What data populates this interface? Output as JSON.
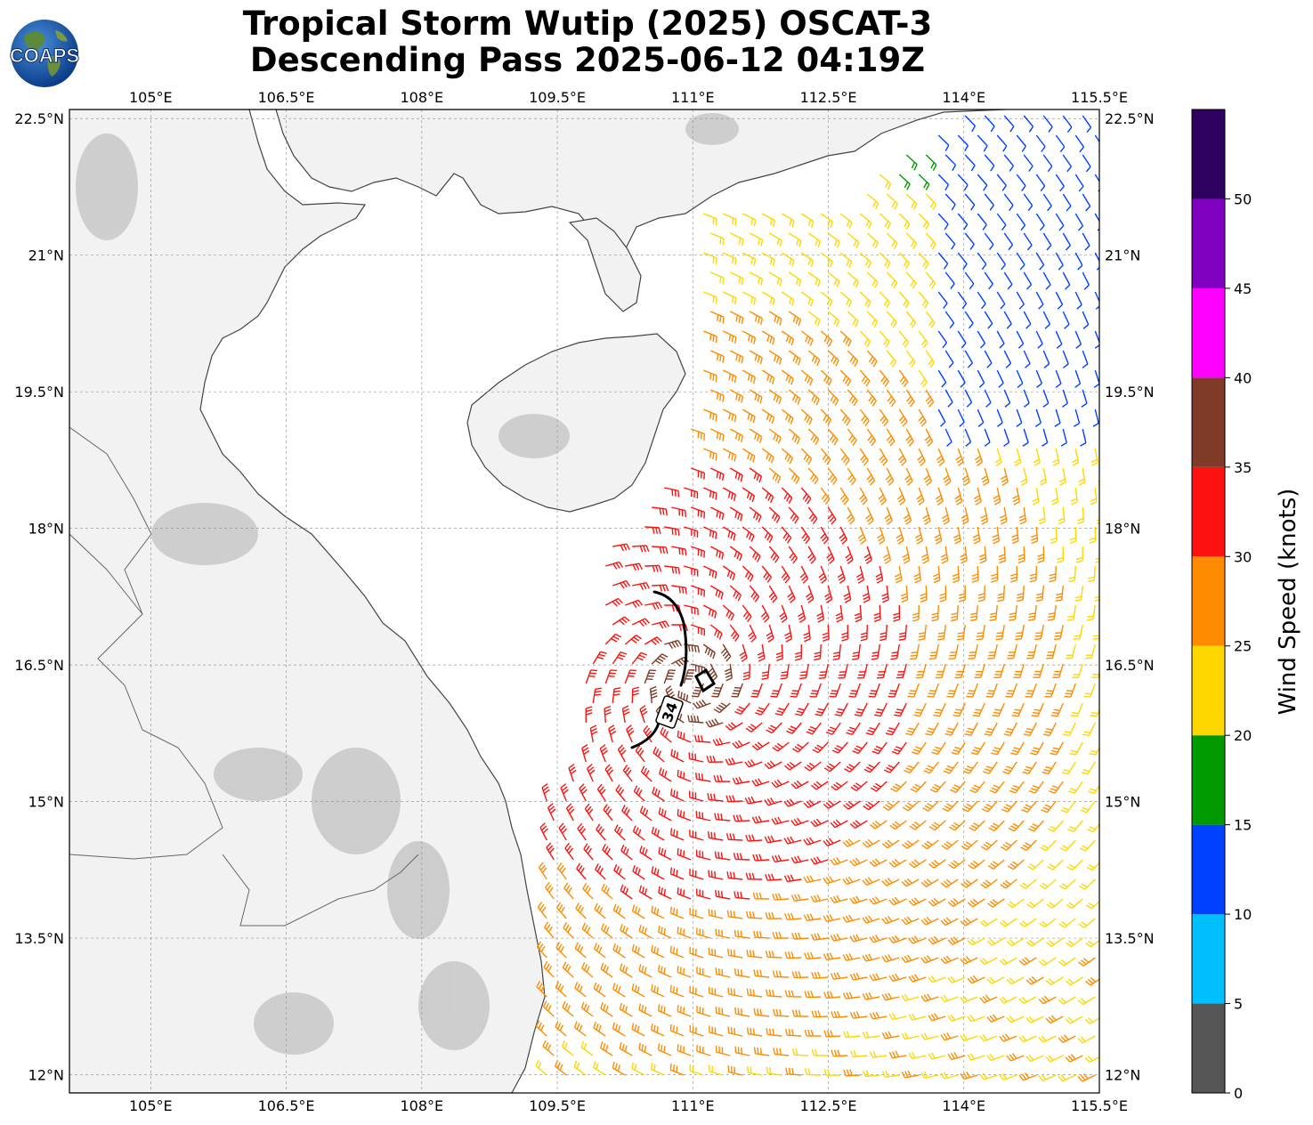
{
  "title": {
    "line1": "Tropical Storm Wutip (2025) OSCAT-3",
    "line2": "Descending Pass 2025-06-12 04:19Z"
  },
  "logo": {
    "text": "COAPS",
    "icon": "coaps-globe-logo"
  },
  "map": {
    "lon_range": [
      104.1,
      115.5
    ],
    "lat_range": [
      11.8,
      22.6
    ],
    "lon_ticks": [
      {
        "value": 105.0,
        "label": "105°E"
      },
      {
        "value": 106.5,
        "label": "106.5°E"
      },
      {
        "value": 108.0,
        "label": "108°E"
      },
      {
        "value": 109.5,
        "label": "109.5°E"
      },
      {
        "value": 111.0,
        "label": "111°E"
      },
      {
        "value": 112.5,
        "label": "112.5°E"
      },
      {
        "value": 114.0,
        "label": "114°E"
      },
      {
        "value": 115.5,
        "label": "115.5°E"
      }
    ],
    "lat_ticks": [
      {
        "value": 22.5,
        "label": "22.5°N"
      },
      {
        "value": 21.0,
        "label": "21°N"
      },
      {
        "value": 19.5,
        "label": "19.5°N"
      },
      {
        "value": 18.0,
        "label": "18°N"
      },
      {
        "value": 16.5,
        "label": "16.5°N"
      },
      {
        "value": 15.0,
        "label": "15°N"
      },
      {
        "value": 13.5,
        "label": "13.5°N"
      },
      {
        "value": 12.0,
        "label": "12°N"
      }
    ],
    "grid": true,
    "storm_center": {
      "lon": 111.0,
      "lat": 16.3
    },
    "contour_label": "34"
  },
  "colorbar": {
    "label": "Wind Speed (knots)",
    "range": [
      0,
      55
    ],
    "ticks": [
      "0",
      "5",
      "10",
      "15",
      "20",
      "25",
      "30",
      "35",
      "40",
      "45",
      "50"
    ],
    "bins": [
      {
        "from": 0,
        "to": 5,
        "color": "#555555"
      },
      {
        "from": 5,
        "to": 10,
        "color": "#00bfff"
      },
      {
        "from": 10,
        "to": 15,
        "color": "#0040ff"
      },
      {
        "from": 15,
        "to": 20,
        "color": "#009900"
      },
      {
        "from": 20,
        "to": 25,
        "color": "#ffd700"
      },
      {
        "from": 25,
        "to": 30,
        "color": "#ff8c00"
      },
      {
        "from": 30,
        "to": 35,
        "color": "#ff1111"
      },
      {
        "from": 35,
        "to": 40,
        "color": "#7f3a28"
      },
      {
        "from": 40,
        "to": 45,
        "color": "#ff00ff"
      },
      {
        "from": 45,
        "to": 50,
        "color": "#8000bf"
      },
      {
        "from": 50,
        "to": 55,
        "color": "#2e0060"
      }
    ]
  },
  "land_color": "#f4f4f4",
  "coast_color": "#444444"
}
